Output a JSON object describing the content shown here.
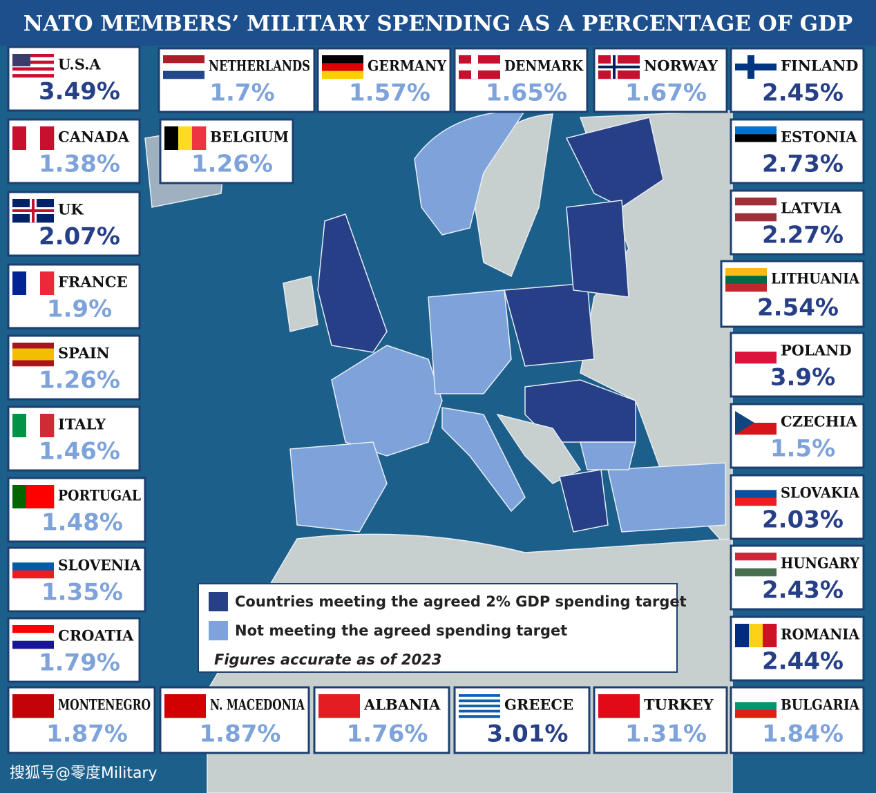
{
  "title": "NATO MEMBERS’ MILITARY SPENDING AS A PERCENTAGE OF GDP",
  "colors": {
    "meeting": "#263f87",
    "not_meeting": "#7ea3da"
  },
  "countries": [
    {
      "name": "U.S.A",
      "value": "3.49%",
      "meets_target": true
    },
    {
      "name": "NETHERLANDS",
      "value": "1.7%",
      "meets_target": false
    },
    {
      "name": "GERMANY",
      "value": "1.57%",
      "meets_target": false
    },
    {
      "name": "DENMARK",
      "value": "1.65%",
      "meets_target": false
    },
    {
      "name": "NORWAY",
      "value": "1.67%",
      "meets_target": false
    },
    {
      "name": "FINLAND",
      "value": "2.45%",
      "meets_target": true
    },
    {
      "name": "CANADA",
      "value": "1.38%",
      "meets_target": false
    },
    {
      "name": "BELGIUM",
      "value": "1.26%",
      "meets_target": false
    },
    {
      "name": "ESTONIA",
      "value": "2.73%",
      "meets_target": true
    },
    {
      "name": "UK",
      "value": "2.07%",
      "meets_target": true
    },
    {
      "name": "LATVIA",
      "value": "2.27%",
      "meets_target": true
    },
    {
      "name": "FRANCE",
      "value": "1.9%",
      "meets_target": false
    },
    {
      "name": "LITHUANIA",
      "value": "2.54%",
      "meets_target": true
    },
    {
      "name": "SPAIN",
      "value": "1.26%",
      "meets_target": false
    },
    {
      "name": "POLAND",
      "value": "3.9%",
      "meets_target": true
    },
    {
      "name": "ITALY",
      "value": "1.46%",
      "meets_target": false
    },
    {
      "name": "CZECHIA",
      "value": "1.5%",
      "meets_target": false
    },
    {
      "name": "PORTUGAL",
      "value": "1.48%",
      "meets_target": false
    },
    {
      "name": "SLOVAKIA",
      "value": "2.03%",
      "meets_target": true
    },
    {
      "name": "SLOVENIA",
      "value": "1.35%",
      "meets_target": false
    },
    {
      "name": "HUNGARY",
      "value": "2.43%",
      "meets_target": true
    },
    {
      "name": "CROATIA",
      "value": "1.79%",
      "meets_target": false
    },
    {
      "name": "ROMANIA",
      "value": "2.44%",
      "meets_target": true
    },
    {
      "name": "MONTENEGRO",
      "value": "1.87%",
      "meets_target": false
    },
    {
      "name": "N. MACEDONIA",
      "value": "1.87%",
      "meets_target": false
    },
    {
      "name": "ALBANIA",
      "value": "1.76%",
      "meets_target": false
    },
    {
      "name": "GREECE",
      "value": "3.01%",
      "meets_target": true
    },
    {
      "name": "TURKEY",
      "value": "1.31%",
      "meets_target": false
    },
    {
      "name": "BULGARIA",
      "value": "1.84%",
      "meets_target": false
    }
  ],
  "legend": {
    "meeting": "Countries meeting the agreed 2% GDP spending target",
    "not_meeting": "Not meeting the agreed spending target",
    "note": "Figures accurate as of 2023"
  },
  "watermark": "搜狐号@零度Military"
}
